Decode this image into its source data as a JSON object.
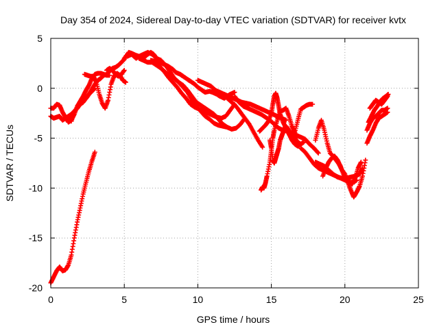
{
  "chart_data": {
    "type": "scatter",
    "title": "Day 354 of 2024, Sidereal Day-to-day VTEC variation (SDTVAR) for receiver kvtx",
    "xlabel": "GPS time / hours",
    "ylabel": "SDTVAR / TECUs",
    "xlim": [
      0,
      25
    ],
    "ylim": [
      -20,
      5
    ],
    "xticks": [
      0,
      5,
      10,
      15,
      20,
      25
    ],
    "yticks": [
      -20,
      -15,
      -10,
      -5,
      0,
      5
    ],
    "grid": true,
    "marker": "+",
    "color": "#ff0000",
    "series": [
      {
        "name": "sdtvar",
        "segments": [
          {
            "x": [
              0.0,
              0.2,
              0.4,
              0.6,
              0.8,
              1.0,
              1.2,
              1.4,
              1.6,
              1.8,
              2.0,
              2.2,
              2.4,
              2.6,
              2.8,
              3.0
            ],
            "y": [
              -19.5,
              -18.9,
              -18.3,
              -17.9,
              -18.3,
              -18.2,
              -17.7,
              -16.7,
              -15.0,
              -13.4,
              -12.0,
              -10.6,
              -9.4,
              -8.3,
              -7.3,
              -6.4
            ]
          },
          {
            "x": [
              0.0,
              0.2,
              0.4,
              0.6,
              0.8,
              1.0,
              1.2,
              1.4,
              1.6,
              1.8,
              2.0,
              2.2,
              2.4,
              2.6,
              2.8,
              3.0,
              3.2,
              3.4,
              3.6,
              3.8,
              4.0,
              4.2,
              4.4,
              4.6,
              4.8,
              5.0
            ],
            "y": [
              -2.8,
              -3.0,
              -2.9,
              -2.8,
              -3.2,
              -3.0,
              -2.9,
              -3.3,
              -2.3,
              -2.0,
              -1.6,
              -1.4,
              -1.0,
              -0.6,
              -0.1,
              0.4,
              0.8,
              1.0,
              1.3,
              1.4,
              1.7,
              2.0,
              2.1,
              2.3,
              2.6,
              2.9
            ]
          },
          {
            "x": [
              0.0,
              0.2,
              0.4,
              0.6,
              0.8,
              1.0,
              1.2,
              1.4,
              1.6,
              1.8,
              2.0,
              2.2,
              2.4,
              2.6,
              2.8,
              3.0,
              3.2,
              3.4,
              3.6,
              3.8,
              4.0
            ],
            "y": [
              -2.0,
              -2.0,
              -1.6,
              -1.7,
              -2.4,
              -2.9,
              -3.4,
              -3.2,
              -2.6,
              -1.8,
              -1.3,
              -0.8,
              -0.2,
              0.3,
              1.0,
              1.4,
              1.5,
              1.5,
              1.4,
              1.3,
              1.3
            ]
          },
          {
            "x": [
              1.0,
              1.2,
              1.4,
              1.6,
              1.8,
              2.0,
              2.2,
              2.4,
              2.6,
              2.8,
              3.0
            ],
            "y": [
              -3.0,
              -2.8,
              -2.6,
              -2.3,
              -2.0,
              -1.6,
              -1.3,
              -1.0,
              -0.6,
              -0.3,
              0.0
            ]
          },
          {
            "x": [
              2.3,
              2.5,
              2.7,
              2.9,
              3.1,
              3.3,
              3.5,
              3.7,
              3.9,
              4.1,
              4.3,
              4.5,
              4.7,
              4.9,
              5.1
            ],
            "y": [
              1.4,
              1.3,
              1.2,
              1.2,
              0.6,
              -0.6,
              -1.5,
              -2.0,
              -1.2,
              0.4,
              1.2,
              1.5,
              1.3,
              0.8,
              0.6
            ]
          },
          {
            "x": [
              3.8,
              4.0,
              4.2,
              4.4,
              4.6,
              4.8,
              5.0
            ],
            "y": [
              1.8,
              2.0,
              1.8,
              1.4,
              1.2,
              1.4,
              1.8
            ]
          },
          {
            "x": [
              5.0,
              5.3,
              5.5,
              5.8,
              6.0,
              6.3,
              6.5,
              6.8,
              7.0,
              7.2,
              7.4,
              7.7,
              8.0,
              8.3,
              8.5,
              8.8,
              9.0,
              9.3,
              9.5,
              9.8,
              10.0,
              10.3,
              10.5,
              10.8,
              11.0,
              11.3,
              11.5,
              11.8,
              12.0,
              12.2,
              12.5
            ],
            "y": [
              3.0,
              3.6,
              3.5,
              3.3,
              3.2,
              3.0,
              3.3,
              3.6,
              3.4,
              3.0,
              2.6,
              2.4,
              2.2,
              1.9,
              1.6,
              1.4,
              1.2,
              0.9,
              0.7,
              0.4,
              0.1,
              -0.2,
              -0.4,
              -0.3,
              -0.4,
              -0.6,
              -0.8,
              -1.0,
              -0.8,
              -0.6,
              -0.4
            ]
          },
          {
            "x": [
              5.2,
              5.5,
              5.8,
              6.0,
              6.3,
              6.6,
              6.9,
              7.2,
              7.5,
              7.8,
              8.1,
              8.4,
              8.7,
              9.0,
              9.3,
              9.6,
              9.9,
              10.2,
              10.5,
              10.8,
              11.1,
              11.4,
              11.7,
              12.0
            ],
            "y": [
              3.2,
              3.4,
              3.0,
              3.2,
              3.4,
              3.6,
              3.4,
              3.0,
              2.8,
              2.3,
              1.7,
              1.0,
              0.6,
              0.1,
              -0.4,
              -1.2,
              -1.8,
              -2.3,
              -2.8,
              -3.1,
              -3.5,
              -3.7,
              -3.8,
              -3.9
            ]
          },
          {
            "x": [
              6.0,
              6.3,
              6.6,
              6.9,
              7.2,
              7.5,
              7.8,
              8.1,
              8.4,
              8.7,
              9.0,
              9.3,
              9.6,
              9.9,
              10.2,
              10.5,
              10.8,
              11.1,
              11.4,
              11.7,
              12.0,
              12.3,
              12.6,
              12.9,
              13.2
            ],
            "y": [
              3.0,
              2.8,
              2.6,
              2.6,
              2.3,
              2.0,
              1.6,
              1.3,
              1.0,
              0.6,
              0.3,
              -0.2,
              -0.8,
              -1.4,
              -1.7,
              -2.0,
              -2.3,
              -2.6,
              -3.1,
              -3.6,
              -3.9,
              -4.1,
              -4.0,
              -3.6,
              -3.0
            ]
          },
          {
            "x": [
              6.8,
              7.1,
              7.4,
              7.7,
              8.0,
              8.3,
              8.6,
              8.9,
              9.2,
              9.5,
              9.8,
              10.1,
              10.4,
              10.7,
              11.0,
              11.3,
              11.6,
              11.9,
              12.2,
              12.5
            ],
            "y": [
              2.8,
              2.7,
              2.2,
              1.7,
              1.1,
              0.6,
              0.1,
              -0.5,
              -1.0,
              -1.6,
              -1.9,
              -2.1,
              -2.3,
              -2.5,
              -2.7,
              -2.9,
              -3.0,
              -2.8,
              -2.2,
              -1.6
            ]
          },
          {
            "x": [
              10.0,
              10.3,
              10.6,
              10.9,
              11.2,
              11.5,
              11.8,
              12.1,
              12.4,
              12.7,
              13.0,
              13.3,
              13.6,
              13.9,
              14.2,
              14.5,
              14.8,
              15.1,
              15.4,
              15.7,
              16.0
            ],
            "y": [
              0.8,
              0.6,
              0.4,
              0.2,
              -0.2,
              -0.4,
              -0.6,
              -0.8,
              -1.0,
              -1.2,
              -1.4,
              -1.5,
              -1.6,
              -1.8,
              -2.0,
              -2.2,
              -2.4,
              -2.6,
              -2.8,
              -3.0,
              -3.2
            ]
          },
          {
            "x": [
              12.0,
              12.3,
              12.6,
              12.9,
              13.2,
              13.5,
              13.8,
              14.1,
              14.4
            ],
            "y": [
              -1.0,
              -1.4,
              -1.8,
              -2.4,
              -3.0,
              -3.6,
              -4.4,
              -5.2,
              -5.9
            ]
          },
          {
            "x": [
              12.5,
              12.8,
              13.1,
              13.4,
              13.7,
              14.0,
              14.3,
              14.6,
              14.9,
              15.2,
              15.5,
              15.8,
              16.1,
              16.4,
              16.7,
              17.0,
              17.3,
              17.6,
              17.9,
              18.2
            ],
            "y": [
              -0.8,
              -1.4,
              -1.8,
              -2.0,
              -2.2,
              -2.4,
              -2.6,
              -2.9,
              -3.2,
              -3.6,
              -4.0,
              -4.2,
              -4.3,
              -4.5,
              -4.7,
              -4.9,
              -5.1,
              -5.6,
              -6.0,
              -6.5
            ]
          },
          {
            "x": [
              14.2,
              14.4,
              14.6,
              14.8,
              15.0,
              15.1,
              15.2,
              15.3,
              15.4,
              15.5,
              15.6,
              15.8,
              16.0,
              16.2,
              16.4,
              16.6,
              16.8,
              17.0
            ],
            "y": [
              -4.3,
              -4.0,
              -3.7,
              -3.3,
              -2.5,
              -1.6,
              -0.8,
              -0.5,
              -1.0,
              -1.8,
              -2.6,
              -3.4,
              -4.0,
              -4.6,
              -5.2,
              -5.6,
              -5.8,
              -5.6
            ]
          },
          {
            "x": [
              14.3,
              14.4,
              14.5,
              14.6,
              14.7,
              14.9,
              15.0,
              15.1,
              15.2,
              15.4,
              15.6,
              15.8,
              16.0,
              16.2,
              16.4,
              16.6,
              16.8,
              17.0,
              17.2,
              17.4,
              17.6,
              17.8
            ],
            "y": [
              -10.2,
              -9.9,
              -10.0,
              -9.5,
              -8.8,
              -7.4,
              -6.2,
              -5.0,
              -4.2,
              -3.2,
              -2.3,
              -2.2,
              -2.0,
              -2.8,
              -3.8,
              -4.4,
              -3.2,
              -2.1,
              -1.9,
              -1.7,
              -1.6,
              -1.6
            ]
          },
          {
            "x": [
              14.9,
              15.0,
              15.1,
              15.2,
              15.3,
              15.4,
              15.5,
              15.6,
              15.7,
              15.8,
              15.9,
              16.0,
              16.2,
              16.4,
              16.6,
              16.8,
              17.0,
              17.2
            ],
            "y": [
              -5.2,
              -6.0,
              -7.2,
              -7.5,
              -7.0,
              -6.5,
              -6.0,
              -5.2,
              -4.8,
              -4.4,
              -4.0,
              -3.8,
              -4.2,
              -4.6,
              -5.0,
              -5.4,
              -5.6,
              -5.4
            ]
          },
          {
            "x": [
              17.0,
              17.3,
              17.6,
              17.9,
              18.2,
              18.5,
              18.8,
              19.1,
              19.4,
              19.7,
              20.0,
              20.3,
              20.6,
              20.8
            ],
            "y": [
              -6.0,
              -6.4,
              -7.0,
              -7.6,
              -8.0,
              -8.2,
              -8.4,
              -8.6,
              -8.8,
              -9.0,
              -9.2,
              -9.4,
              -9.4,
              -9.2
            ]
          },
          {
            "x": [
              18.0,
              18.2,
              18.4,
              18.6,
              18.8,
              19.0,
              19.2,
              19.4,
              19.6,
              19.8,
              20.0,
              20.2,
              20.4,
              20.6,
              20.8,
              21.0,
              21.2,
              21.4
            ],
            "y": [
              -5.2,
              -4.0,
              -3.2,
              -4.2,
              -5.5,
              -6.5,
              -6.8,
              -7.2,
              -7.6,
              -8.2,
              -8.6,
              -9.4,
              -10.2,
              -10.9,
              -10.4,
              -9.8,
              -8.8,
              -7.2
            ]
          },
          {
            "x": [
              18.5,
              18.7,
              18.9,
              19.1,
              19.3,
              19.5,
              19.7,
              19.9,
              20.1,
              20.3,
              20.5,
              20.7,
              20.9,
              21.1
            ],
            "y": [
              -8.8,
              -8.0,
              -7.4,
              -7.0,
              -6.8,
              -7.2,
              -7.8,
              -8.6,
              -9.0,
              -9.4,
              -9.6,
              -9.0,
              -8.0,
              -7.4
            ]
          },
          {
            "x": [
              18.0,
              18.3,
              18.6,
              18.9,
              19.2,
              19.5,
              19.8,
              20.1,
              20.4,
              20.7,
              21.0,
              21.2
            ],
            "y": [
              -7.4,
              -7.6,
              -7.8,
              -8.2,
              -8.6,
              -8.9,
              -9.0,
              -9.0,
              -8.9,
              -8.8,
              -8.6,
              -8.0
            ]
          },
          {
            "x": [
              21.5,
              21.7,
              21.9,
              22.1,
              22.3,
              22.5,
              22.7,
              22.9
            ],
            "y": [
              -5.5,
              -4.8,
              -4.2,
              -3.5,
              -3.0,
              -2.8,
              -2.6,
              -2.4
            ]
          },
          {
            "x": [
              21.5,
              21.7,
              21.9,
              22.1,
              22.3,
              22.5,
              22.7,
              22.9
            ],
            "y": [
              -4.2,
              -3.5,
              -3.0,
              -2.8,
              -2.5,
              -2.2,
              -2.2,
              -2.0
            ]
          },
          {
            "x": [
              21.6,
              21.8,
              22.0,
              22.2,
              22.4,
              22.6,
              22.8,
              22.95
            ],
            "y": [
              -3.4,
              -2.8,
              -2.2,
              -1.8,
              -1.3,
              -1.0,
              -0.8,
              -0.6
            ]
          },
          {
            "x": [
              21.7,
              21.9,
              22.1,
              22.3,
              22.5,
              22.7,
              22.9
            ],
            "y": [
              -2.0,
              -1.6,
              -1.2,
              -1.4,
              -1.6,
              -1.2,
              -0.8
            ]
          }
        ]
      }
    ]
  }
}
